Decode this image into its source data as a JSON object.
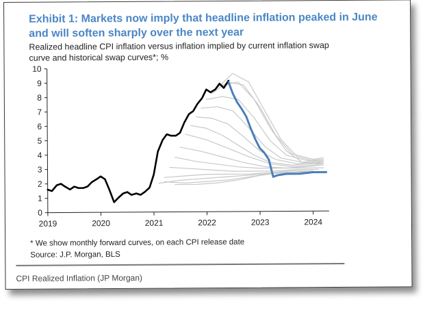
{
  "caption": "CPI Realized Inflation (JP Morgan)",
  "chart_data": {
    "type": "line",
    "title": "Exhibit 1:  Markets now imply that headline inflation peaked in June and will soften sharply over the next year",
    "subtitle": "Realized headline CPI inflation versus inflation implied by current inflation swap curve and historical swap curves*; %",
    "footnote": "* We show monthly forward curves, on each CPI release date",
    "source": "Source: J.P. Morgan, BLS",
    "xlabel": "",
    "ylabel": "",
    "xlim": [
      2019.0,
      2024.3
    ],
    "ylim": [
      0,
      10
    ],
    "x_ticks": [
      2019,
      2020,
      2021,
      2022,
      2023,
      2024
    ],
    "y_ticks": [
      0,
      1,
      2,
      3,
      4,
      5,
      6,
      7,
      8,
      9,
      10
    ],
    "grid": false,
    "legend": false,
    "colors": {
      "realized": "#000000",
      "current": "#4a7ebb",
      "historical": "#c8c8c8",
      "title": "#4a86c5"
    },
    "series": [
      {
        "role": "realized",
        "x": [
          2019.0,
          2019.08,
          2019.17,
          2019.25,
          2019.33,
          2019.42,
          2019.5,
          2019.58,
          2019.67,
          2019.75,
          2019.83,
          2019.92,
          2020.0,
          2020.08,
          2020.17,
          2020.25,
          2020.33,
          2020.42,
          2020.5,
          2020.58,
          2020.67,
          2020.75,
          2020.83,
          2020.92,
          2021.0,
          2021.08,
          2021.17,
          2021.25,
          2021.33,
          2021.42,
          2021.5,
          2021.58,
          2021.67,
          2021.75,
          2021.83,
          2021.92,
          2022.0,
          2022.08,
          2022.17,
          2022.25,
          2022.33,
          2022.42
        ],
        "values": [
          1.6,
          1.5,
          1.9,
          2.0,
          1.8,
          1.6,
          1.8,
          1.7,
          1.7,
          1.8,
          2.1,
          2.3,
          2.5,
          2.3,
          1.5,
          0.7,
          1.0,
          1.3,
          1.4,
          1.2,
          1.3,
          1.2,
          1.4,
          1.7,
          2.6,
          4.2,
          5.0,
          5.4,
          5.3,
          5.3,
          5.5,
          6.2,
          6.8,
          7.0,
          7.5,
          7.9,
          8.5,
          8.3,
          8.5,
          8.9,
          8.6,
          9.1
        ]
      },
      {
        "role": "current",
        "x": [
          2022.42,
          2022.5,
          2022.58,
          2022.67,
          2022.75,
          2022.83,
          2022.92,
          2023.0,
          2023.08,
          2023.17,
          2023.25,
          2023.33,
          2023.5,
          2023.75,
          2024.0,
          2024.25
        ],
        "values": [
          9.0,
          8.2,
          7.6,
          7.1,
          6.6,
          5.8,
          5.0,
          4.4,
          4.1,
          3.6,
          2.4,
          2.5,
          2.6,
          2.6,
          2.7,
          2.7
        ]
      },
      {
        "role": "historical",
        "x": [
          2021.1,
          2021.5,
          2021.9,
          2022.3,
          2022.7,
          2023.1,
          2023.5,
          2023.9
        ],
        "values": [
          2.0,
          2.2,
          2.3,
          2.4,
          2.5,
          2.6,
          2.7,
          2.7
        ]
      },
      {
        "role": "historical",
        "x": [
          2021.2,
          2021.6,
          2022.0,
          2022.4,
          2022.8,
          2023.2,
          2023.6,
          2024.0
        ],
        "values": [
          2.4,
          2.5,
          2.6,
          2.6,
          2.6,
          2.7,
          2.8,
          2.8
        ]
      },
      {
        "role": "historical",
        "x": [
          2021.3,
          2021.7,
          2022.1,
          2022.5,
          2022.9,
          2023.3,
          2023.7,
          2024.1
        ],
        "values": [
          3.1,
          3.0,
          2.9,
          2.8,
          2.8,
          2.8,
          2.9,
          2.9
        ]
      },
      {
        "role": "historical",
        "x": [
          2021.4,
          2021.8,
          2022.2,
          2022.6,
          2023.0,
          2023.4,
          2023.8,
          2024.2
        ],
        "values": [
          3.8,
          3.5,
          3.3,
          3.1,
          3.0,
          3.0,
          3.0,
          3.0
        ]
      },
      {
        "role": "historical",
        "x": [
          2021.5,
          2021.9,
          2022.3,
          2022.7,
          2023.1,
          2023.5,
          2023.9,
          2024.2
        ],
        "values": [
          4.5,
          4.2,
          3.8,
          3.4,
          3.1,
          3.0,
          3.1,
          3.2
        ]
      },
      {
        "role": "historical",
        "x": [
          2021.6,
          2022.0,
          2022.4,
          2022.8,
          2023.2,
          2023.6,
          2024.0,
          2024.2
        ],
        "values": [
          5.4,
          5.0,
          4.4,
          3.8,
          3.3,
          3.1,
          3.2,
          3.3
        ]
      },
      {
        "role": "historical",
        "x": [
          2021.7,
          2022.0,
          2022.3,
          2022.6,
          2022.9,
          2023.2,
          2023.6,
          2024.0,
          2024.2
        ],
        "values": [
          6.0,
          5.8,
          5.3,
          4.6,
          3.9,
          3.4,
          3.2,
          3.3,
          3.4
        ]
      },
      {
        "role": "historical",
        "x": [
          2021.8,
          2022.1,
          2022.4,
          2022.7,
          2023.0,
          2023.3,
          2023.7,
          2024.1,
          2024.2
        ],
        "values": [
          6.6,
          6.5,
          6.1,
          5.2,
          4.2,
          3.6,
          3.3,
          3.4,
          3.5
        ]
      },
      {
        "role": "historical",
        "x": [
          2021.9,
          2022.2,
          2022.5,
          2022.8,
          2023.1,
          2023.4,
          2023.8,
          2024.2
        ],
        "values": [
          7.2,
          7.3,
          7.0,
          5.8,
          4.5,
          3.7,
          3.4,
          3.5
        ]
      },
      {
        "role": "historical",
        "x": [
          2022.0,
          2022.3,
          2022.6,
          2022.9,
          2023.2,
          2023.5,
          2023.9,
          2024.2
        ],
        "values": [
          7.8,
          8.0,
          7.8,
          6.5,
          4.9,
          3.9,
          3.5,
          3.6
        ]
      },
      {
        "role": "historical",
        "x": [
          2022.1,
          2022.4,
          2022.7,
          2023.0,
          2023.3,
          2023.6,
          2024.0,
          2024.2
        ],
        "values": [
          8.2,
          9.0,
          8.8,
          7.3,
          5.3,
          4.0,
          3.6,
          3.7
        ]
      },
      {
        "role": "historical",
        "x": [
          2022.2,
          2022.5,
          2022.8,
          2023.1,
          2023.4,
          2023.7,
          2024.0,
          2024.2
        ],
        "values": [
          8.6,
          9.6,
          9.0,
          7.0,
          5.0,
          3.8,
          3.5,
          3.6
        ]
      },
      {
        "role": "historical",
        "x": [
          2022.3,
          2022.6,
          2022.9,
          2023.2,
          2023.5,
          2023.8,
          2024.1,
          2024.2
        ],
        "values": [
          8.8,
          9.0,
          7.8,
          5.8,
          4.2,
          3.4,
          3.3,
          3.3
        ]
      },
      {
        "role": "historical",
        "x": [
          2021.2,
          2021.6,
          2022.0,
          2022.4,
          2022.8,
          2023.2,
          2023.6,
          2024.0
        ],
        "values": [
          2.1,
          2.0,
          2.1,
          2.2,
          2.4,
          2.6,
          2.7,
          2.8
        ]
      },
      {
        "role": "historical",
        "x": [
          2021.4,
          2021.8,
          2022.2,
          2022.6,
          2023.0,
          2023.4
        ],
        "values": [
          1.9,
          1.9,
          2.0,
          2.2,
          2.5,
          2.7
        ]
      }
    ]
  }
}
